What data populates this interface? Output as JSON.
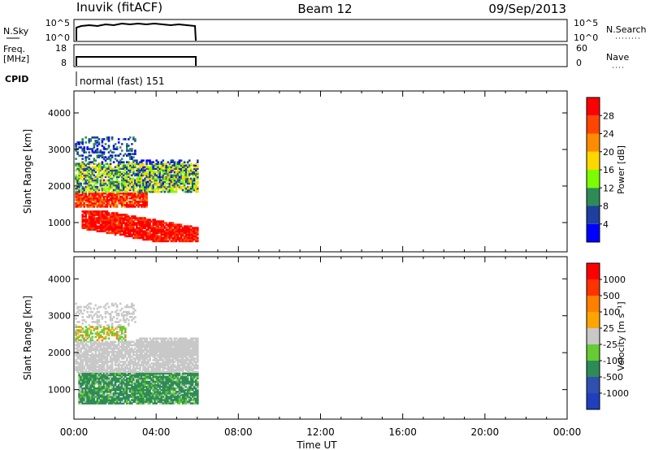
{
  "header": {
    "title": "Inuvik (fitACF)",
    "beam": "Beam 12",
    "date": "09/Sep/2013"
  },
  "left_labels": {
    "nsky": "N.Sky",
    "freq": "Freq.",
    "freq_unit": "[MHz]",
    "cpid": "CPID"
  },
  "right_labels": {
    "nsearch": "N.Search",
    "nave": "Nave"
  },
  "noise_axis": {
    "left_ticks": [
      "10^5",
      "10^0"
    ],
    "right_ticks": [
      "10^5",
      "10^0"
    ]
  },
  "freq_axis": {
    "left_ticks": [
      "18",
      "8"
    ],
    "right_ticks": [
      "60",
      "0"
    ]
  },
  "cpid_text": "normal (fast) 151",
  "chart_data": [
    {
      "type": "heatmap",
      "name": "power",
      "ylabel": "Slant Range [km]",
      "xlabel": "",
      "y_ticks": [
        1000,
        2000,
        3000,
        4000
      ],
      "ylim": [
        200,
        4600
      ],
      "xlim_hours": [
        0,
        24
      ],
      "colorbar": {
        "label": "Power [dB]",
        "ticks": [
          "28",
          "24",
          "20",
          "16",
          "12",
          "8",
          "4"
        ],
        "colors": [
          "#0000ff",
          "#1f3fa0",
          "#2e8b57",
          "#7cfc00",
          "#ffd700",
          "#ff8c00",
          "#ff4500",
          "#ff0000"
        ]
      },
      "data_extent_hours": [
        0,
        6
      ]
    },
    {
      "type": "heatmap",
      "name": "velocity",
      "ylabel": "Slant Range [km]",
      "xlabel": "Time UT",
      "y_ticks": [
        1000,
        2000,
        3000,
        4000
      ],
      "ylim": [
        200,
        4600
      ],
      "xlim_hours": [
        0,
        24
      ],
      "x_tick_labels": [
        "00:00",
        "04:00",
        "08:00",
        "12:00",
        "16:00",
        "20:00",
        "00:00"
      ],
      "colorbar": {
        "label": "Velocity [m s⁻¹]",
        "ticks": [
          "1000",
          "500",
          "100",
          "25",
          "-25",
          "-100",
          "-500",
          "-1000"
        ],
        "colors": [
          "#1f3fbf",
          "#3050b0",
          "#2e8b57",
          "#66cc33",
          "#c8c8c8",
          "#ffa500",
          "#ff7f00",
          "#ff3300",
          "#ff0000"
        ]
      },
      "data_extent_hours": [
        0,
        6
      ]
    }
  ]
}
